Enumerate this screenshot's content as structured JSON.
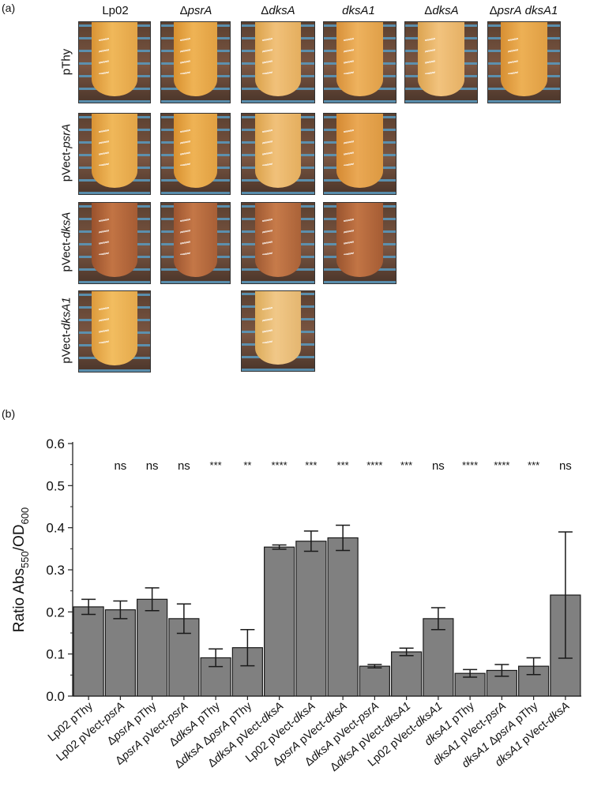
{
  "panel_a": {
    "label": "(a)",
    "columns": [
      "Lp02",
      "ΔpsrA",
      "ΔdksA",
      "dksA1",
      "ΔdksA",
      "ΔpsrA dksA1"
    ],
    "rows": [
      "pThy",
      "pVect-psrA",
      "pVect-dksA",
      "pVect-dksA1"
    ],
    "colors": {
      "light": "#e8a94a",
      "medium": "#dc9a3e",
      "dark": "#a95c34",
      "pale": "#e6b267"
    }
  },
  "panel_b": {
    "label": "(b)"
  },
  "chart_data": {
    "type": "bar",
    "categories": [
      "Lp02 pThy",
      "Lp02 pVect-psrA",
      "ΔpsrA pThy",
      "ΔpsrA pVect-psrA",
      "ΔdksA pThy",
      "ΔdksA ΔpsrA pThy",
      "ΔdksA pVect-dksA",
      "Lp02 pVect-dksA",
      "ΔpsrA pVect-dksA",
      "ΔdksA pVect-psrA",
      "ΔdksA pVect-dksA1",
      "Lp02 pVect-dksA1",
      "dksA1 pThy",
      "dksA1 pVect-psrA",
      "dksA1 ΔpsrA pThy",
      "dksA1 pVect-dksA"
    ],
    "values": [
      0.212,
      0.205,
      0.23,
      0.184,
      0.091,
      0.115,
      0.354,
      0.368,
      0.376,
      0.071,
      0.105,
      0.184,
      0.054,
      0.061,
      0.071,
      0.24
    ],
    "errors": [
      0.018,
      0.021,
      0.027,
      0.035,
      0.021,
      0.043,
      0.005,
      0.024,
      0.03,
      0.004,
      0.009,
      0.026,
      0.009,
      0.014,
      0.02,
      0.15
    ],
    "significance": [
      "",
      "ns",
      "ns",
      "ns",
      "***",
      "**",
      "****",
      "***",
      "***",
      "****",
      "***",
      "ns",
      "****",
      "****",
      "***",
      "ns"
    ],
    "ylabel": "Ratio Abs550/OD600",
    "ylim": [
      0,
      0.6
    ],
    "yticks": [
      "0.0",
      "0.1",
      "0.2",
      "0.3",
      "0.4",
      "0.5",
      "0.6"
    ],
    "bar_color": "#808080"
  }
}
